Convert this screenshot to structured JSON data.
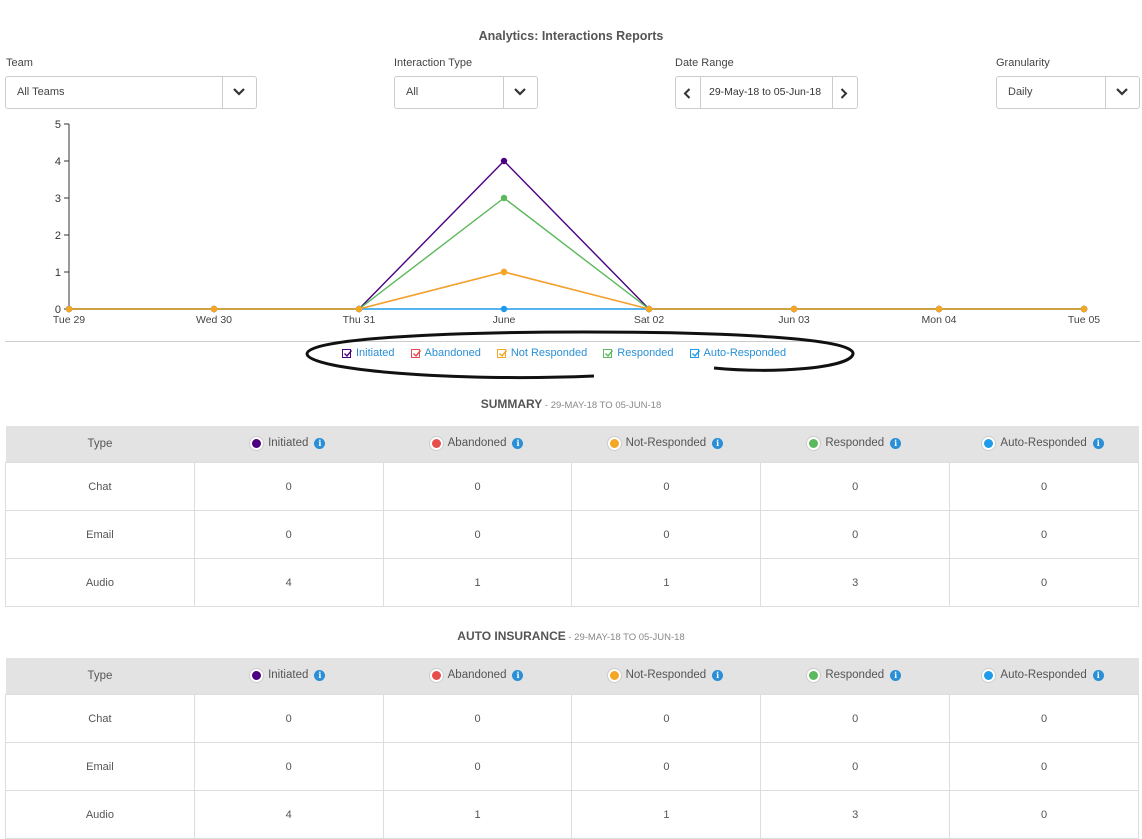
{
  "page_title": "Analytics: Interactions Reports",
  "filters": {
    "team": {
      "label": "Team",
      "value": "All Teams"
    },
    "interaction_type": {
      "label": "Interaction Type",
      "value": "All"
    },
    "date_range": {
      "label": "Date Range",
      "value": "29-May-18 to 05-Jun-18"
    },
    "granularity": {
      "label": "Granularity",
      "value": "Daily"
    }
  },
  "chart_data": {
    "type": "line",
    "categories": [
      "Tue 29",
      "Wed 30",
      "Thu 31",
      "June",
      "Sat 02",
      "Jun 03",
      "Mon 04",
      "Tue 05"
    ],
    "ylim": [
      0,
      5
    ],
    "yticks": [
      0,
      1,
      2,
      3,
      4,
      5
    ],
    "series": [
      {
        "name": "Initiated",
        "color": "#4b0082",
        "values": [
          0,
          0,
          0,
          4,
          0,
          0,
          0,
          0
        ]
      },
      {
        "name": "Abandoned",
        "color": "#e84c4c",
        "values": [
          0,
          0,
          0,
          1,
          0,
          0,
          0,
          0
        ]
      },
      {
        "name": "Responded",
        "color": "#5cb85c",
        "values": [
          0,
          0,
          0,
          3,
          0,
          0,
          0,
          0
        ]
      },
      {
        "name": "Auto-Responded",
        "color": "#1e9be9",
        "values": [
          0,
          0,
          0,
          0,
          0,
          0,
          0,
          0
        ]
      },
      {
        "name": "Not Responded",
        "color": "#f5a623",
        "values": [
          0,
          0,
          0,
          1,
          0,
          0,
          0,
          0
        ]
      }
    ]
  },
  "legend": [
    {
      "label": "Initiated",
      "color": "#4b0082"
    },
    {
      "label": "Abandoned",
      "color": "#e84c4c"
    },
    {
      "label": "Not Responded",
      "color": "#f5a623"
    },
    {
      "label": "Responded",
      "color": "#5cb85c"
    },
    {
      "label": "Auto-Responded",
      "color": "#1e9be9"
    }
  ],
  "columns": [
    {
      "label": "Type"
    },
    {
      "label": "Initiated",
      "color": "#4b0082"
    },
    {
      "label": "Abandoned",
      "color": "#e84c4c"
    },
    {
      "label": "Not-Responded",
      "color": "#f5a623"
    },
    {
      "label": "Responded",
      "color": "#5cb85c"
    },
    {
      "label": "Auto-Responded",
      "color": "#1e9be9"
    }
  ],
  "info_icon": "i",
  "tables": [
    {
      "title": "SUMMARY",
      "subtitle": " - 29-MAY-18 TO 05-JUN-18",
      "rows": [
        [
          "Chat",
          "0",
          "0",
          "0",
          "0",
          "0"
        ],
        [
          "Email",
          "0",
          "0",
          "0",
          "0",
          "0"
        ],
        [
          "Audio",
          "4",
          "1",
          "1",
          "3",
          "0"
        ]
      ]
    },
    {
      "title": "AUTO INSURANCE",
      "subtitle": " - 29-MAY-18 TO 05-JUN-18",
      "rows": [
        [
          "Chat",
          "0",
          "0",
          "0",
          "0",
          "0"
        ],
        [
          "Email",
          "0",
          "0",
          "0",
          "0",
          "0"
        ],
        [
          "Audio",
          "4",
          "1",
          "1",
          "3",
          "0"
        ]
      ]
    }
  ]
}
